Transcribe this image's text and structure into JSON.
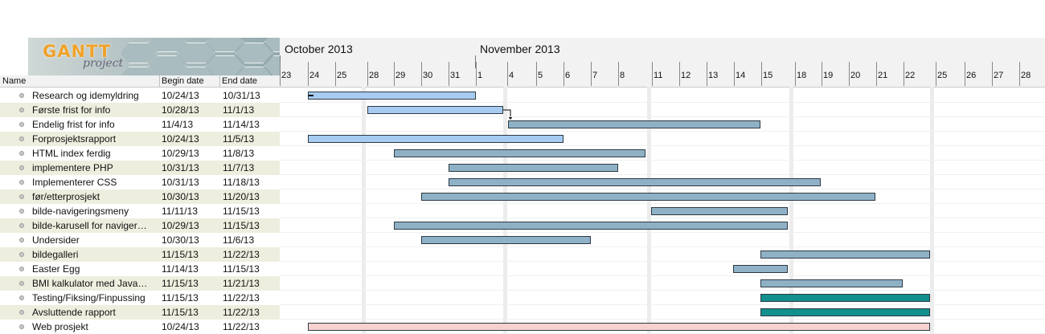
{
  "logo": {
    "brand": "GANTT",
    "sub": "project"
  },
  "table": {
    "columns": {
      "name": "Name",
      "begin": "Begin date",
      "end": "End date"
    }
  },
  "timeline": {
    "months": [
      {
        "label": "October 2013"
      },
      {
        "label": "November 2013"
      }
    ],
    "day_labels": [
      "23",
      "24",
      "25",
      "28",
      "29",
      "30",
      "31",
      "1",
      "4",
      "5",
      "6",
      "7",
      "8",
      "11",
      "12",
      "13",
      "14",
      "15",
      "18",
      "19",
      "20",
      "21",
      "22",
      "25",
      "26",
      "27",
      "28"
    ]
  },
  "colors": {
    "light_blue": "#a8cbf2",
    "steel_blue": "#8fb1c6",
    "teal": "#138f8d",
    "pink": "#f7d0d0"
  },
  "tasks": [
    {
      "name": "Research og idemyldring",
      "begin": "10/24/13",
      "end": "10/31/13",
      "color": "light"
    },
    {
      "name": "Første frist for info",
      "begin": "10/28/13",
      "end": "11/1/13",
      "color": "light"
    },
    {
      "name": "Endelig frist for info",
      "begin": "11/4/13",
      "end": "11/14/13",
      "color": "steel"
    },
    {
      "name": "Forprosjektsrapport",
      "begin": "10/24/13",
      "end": "11/5/13",
      "color": "light"
    },
    {
      "name": "HTML index ferdig",
      "begin": "10/29/13",
      "end": "11/8/13",
      "color": "steel"
    },
    {
      "name": "implementere PHP",
      "begin": "10/31/13",
      "end": "11/7/13",
      "color": "steel"
    },
    {
      "name": "Implementerer CSS",
      "begin": "10/31/13",
      "end": "11/18/13",
      "color": "steel"
    },
    {
      "name": "før/etterprosjekt",
      "begin": "10/30/13",
      "end": "11/20/13",
      "color": "steel"
    },
    {
      "name": "bilde-navigeringsmeny",
      "begin": "11/11/13",
      "end": "11/15/13",
      "color": "steel"
    },
    {
      "name": "bilde-karusell for naviger…",
      "begin": "10/29/13",
      "end": "11/15/13",
      "color": "steel"
    },
    {
      "name": "Undersider",
      "begin": "10/30/13",
      "end": "11/6/13",
      "color": "steel"
    },
    {
      "name": "bildegalleri",
      "begin": "11/15/13",
      "end": "11/22/13",
      "color": "steel"
    },
    {
      "name": "Easter Egg",
      "begin": "11/14/13",
      "end": "11/15/13",
      "color": "steel"
    },
    {
      "name": "BMI kalkulator med Java…",
      "begin": "11/15/13",
      "end": "11/21/13",
      "color": "steel"
    },
    {
      "name": "Testing/Fiksing/Finpussing",
      "begin": "11/15/13",
      "end": "11/22/13",
      "color": "teal"
    },
    {
      "name": "Avsluttende rapport",
      "begin": "11/15/13",
      "end": "11/22/13",
      "color": "teal"
    },
    {
      "name": "Web prosjekt",
      "begin": "10/24/13",
      "end": "11/22/13",
      "color": "pink"
    }
  ]
}
